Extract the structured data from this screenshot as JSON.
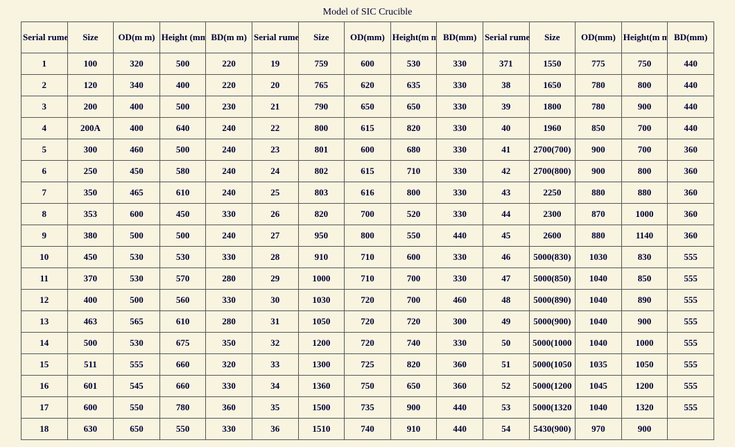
{
  "title": "Model of  SIC Crucible",
  "background_color": "#f8f4e0",
  "text_color": "#000033",
  "border_color": "#555555",
  "font_family": "Times New Roman",
  "header_fontsize": 13,
  "cell_fontsize": 13,
  "columns": [
    "Serial rumeer",
    "Size",
    "OD(mm)",
    "Height(mm)",
    "BD(mm)",
    "Serial rumeer",
    "Size",
    "OD(mm)",
    "Height(mm)",
    "BD(mm)",
    "Serial rumeer",
    "Size",
    "OD(mm)",
    "Height(mm)",
    "BD(mm)"
  ],
  "header_labels": [
    "Serial rumeer",
    "Size",
    "OD(m m)",
    "Height (mm)",
    "BD(m m)",
    "Serial rumeer",
    "Size",
    "OD(mm)",
    "Height(m m)",
    "BD(mm)",
    "Serial rumeer",
    "Size",
    "OD(mm)",
    "Height(m m)",
    "BD(mm)"
  ],
  "rows": [
    [
      "1",
      "100",
      "320",
      "500",
      "220",
      "19",
      "759",
      "600",
      "530",
      "330",
      "371",
      "1550",
      "775",
      "750",
      "440"
    ],
    [
      "2",
      "120",
      "340",
      "400",
      "220",
      "20",
      "765",
      "620",
      "635",
      "330",
      "38",
      "1650",
      "780",
      "800",
      "440"
    ],
    [
      "3",
      "200",
      "400",
      "500",
      "230",
      "21",
      "790",
      "650",
      "650",
      "330",
      "39",
      "1800",
      "780",
      "900",
      "440"
    ],
    [
      "4",
      "200A",
      "400",
      "640",
      "240",
      "22",
      "800",
      "615",
      "820",
      "330",
      "40",
      "1960",
      "850",
      "700",
      "440"
    ],
    [
      "5",
      "300",
      "460",
      "500",
      "240",
      "23",
      "801",
      "600",
      "680",
      "330",
      "41",
      "2700(700)",
      "900",
      "700",
      "360"
    ],
    [
      "6",
      "250",
      "450",
      "580",
      "240",
      "24",
      "802",
      "615",
      "710",
      "330",
      "42",
      "2700(800)",
      "900",
      "800",
      "360"
    ],
    [
      "7",
      "350",
      "465",
      "610",
      "240",
      "25",
      "803",
      "616",
      "800",
      "330",
      "43",
      "2250",
      "880",
      "880",
      "360"
    ],
    [
      "8",
      "353",
      "600",
      "450",
      "330",
      "26",
      "820",
      "700",
      "520",
      "330",
      "44",
      "2300",
      "870",
      "1000",
      "360"
    ],
    [
      "9",
      "380",
      "500",
      "500",
      "240",
      "27",
      "950",
      "800",
      "550",
      "440",
      "45",
      "2600",
      "880",
      "1140",
      "360"
    ],
    [
      "10",
      "450",
      "530",
      "530",
      "330",
      "28",
      "910",
      "710",
      "600",
      "330",
      "46",
      "5000(830)",
      "1030",
      "830",
      "555"
    ],
    [
      "11",
      "370",
      "530",
      "570",
      "280",
      "29",
      "1000",
      "710",
      "700",
      "330",
      "47",
      "5000(850)",
      "1040",
      "850",
      "555"
    ],
    [
      "12",
      "400",
      "500",
      "560",
      "330",
      "30",
      "1030",
      "720",
      "700",
      "460",
      "48",
      "5000(890)",
      "1040",
      "890",
      "555"
    ],
    [
      "13",
      "463",
      "565",
      "610",
      "280",
      "31",
      "1050",
      "720",
      "720",
      "300",
      "49",
      "5000(900)",
      "1040",
      "900",
      "555"
    ],
    [
      "14",
      "500",
      "530",
      "675",
      "350",
      "32",
      "1200",
      "720",
      "740",
      "330",
      "50",
      "5000(1000",
      "1040",
      "1000",
      "555"
    ],
    [
      "15",
      "511",
      "555",
      "660",
      "320",
      "33",
      "1300",
      "725",
      "820",
      "360",
      "51",
      "5000(1050",
      "1035",
      "1050",
      "555"
    ],
    [
      "16",
      "601",
      "545",
      "660",
      "330",
      "34",
      "1360",
      "750",
      "650",
      "360",
      "52",
      "5000(1200",
      "1045",
      "1200",
      "555"
    ],
    [
      "17",
      "600",
      "550",
      "780",
      "360",
      "35",
      "1500",
      "735",
      "900",
      "440",
      "53",
      "5000(1320",
      "1040",
      "1320",
      "555"
    ],
    [
      "18",
      "630",
      "650",
      "550",
      "330",
      "36",
      "1510",
      "740",
      "910",
      "440",
      "54",
      "5430(900)",
      "970",
      "900",
      ""
    ]
  ]
}
